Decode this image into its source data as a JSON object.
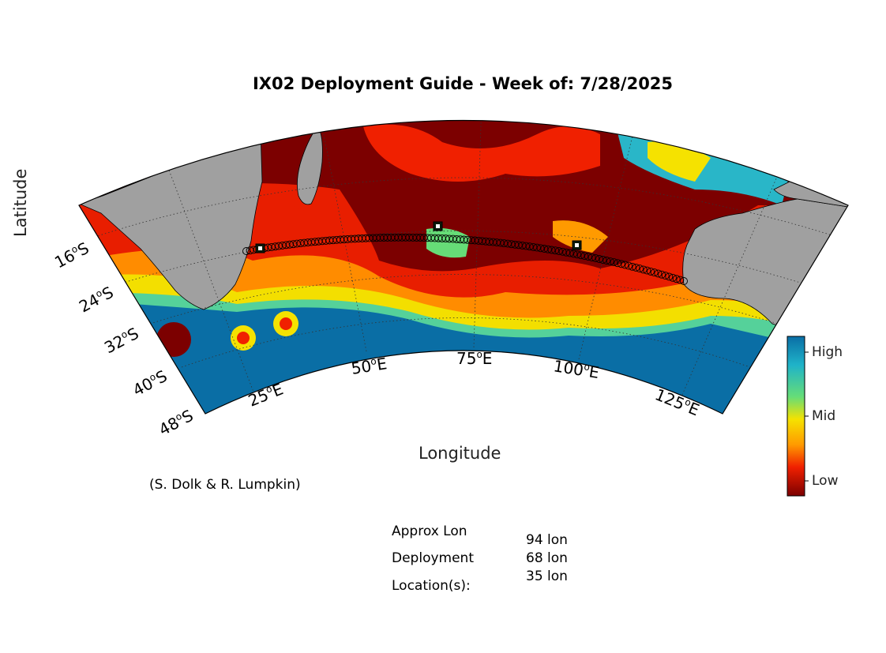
{
  "figure": {
    "title": "IX02 Deployment Guide - Week of: 7/28/2025",
    "xlabel": "Longitude",
    "ylabel": "Latitude",
    "credit": "(S. Dolk & R. Lumpkin)"
  },
  "axes": {
    "lon_ticks": [
      {
        "deg": "25",
        "hemi": "E"
      },
      {
        "deg": "50",
        "hemi": "E"
      },
      {
        "deg": "75",
        "hemi": "E"
      },
      {
        "deg": "100",
        "hemi": "E"
      },
      {
        "deg": "125",
        "hemi": "E"
      }
    ],
    "lat_ticks": [
      {
        "deg": "16",
        "hemi": "S"
      },
      {
        "deg": "24",
        "hemi": "S"
      },
      {
        "deg": "32",
        "hemi": "S"
      },
      {
        "deg": "40",
        "hemi": "S"
      },
      {
        "deg": "48",
        "hemi": "S"
      }
    ],
    "deg_symbol": "o"
  },
  "colorbar": {
    "labels": [
      "High",
      "Mid",
      "Low"
    ],
    "colors": [
      "#0a6ea5",
      "#1fb3c9",
      "#66dd77",
      "#f5e200",
      "#ff9a00",
      "#f02000",
      "#7c0000"
    ]
  },
  "deployment_note": {
    "line1": "Approx Lon",
    "line2": "Deployment",
    "line3": "Location(s):",
    "locations": [
      "94 lon",
      "68 lon",
      "35 lon"
    ]
  },
  "chart_data": {
    "type": "map",
    "projection": "conic",
    "region": "Indian Ocean, IX02 line",
    "deployment_locations_lon": [
      94,
      68,
      35
    ],
    "colorbar_scale": [
      "Low",
      "Mid",
      "High"
    ]
  },
  "colors": {
    "land": "#a0a0a0",
    "ocean_low": "#7c0000",
    "ocean_high": "#0a6ea5",
    "track": "#000000"
  }
}
